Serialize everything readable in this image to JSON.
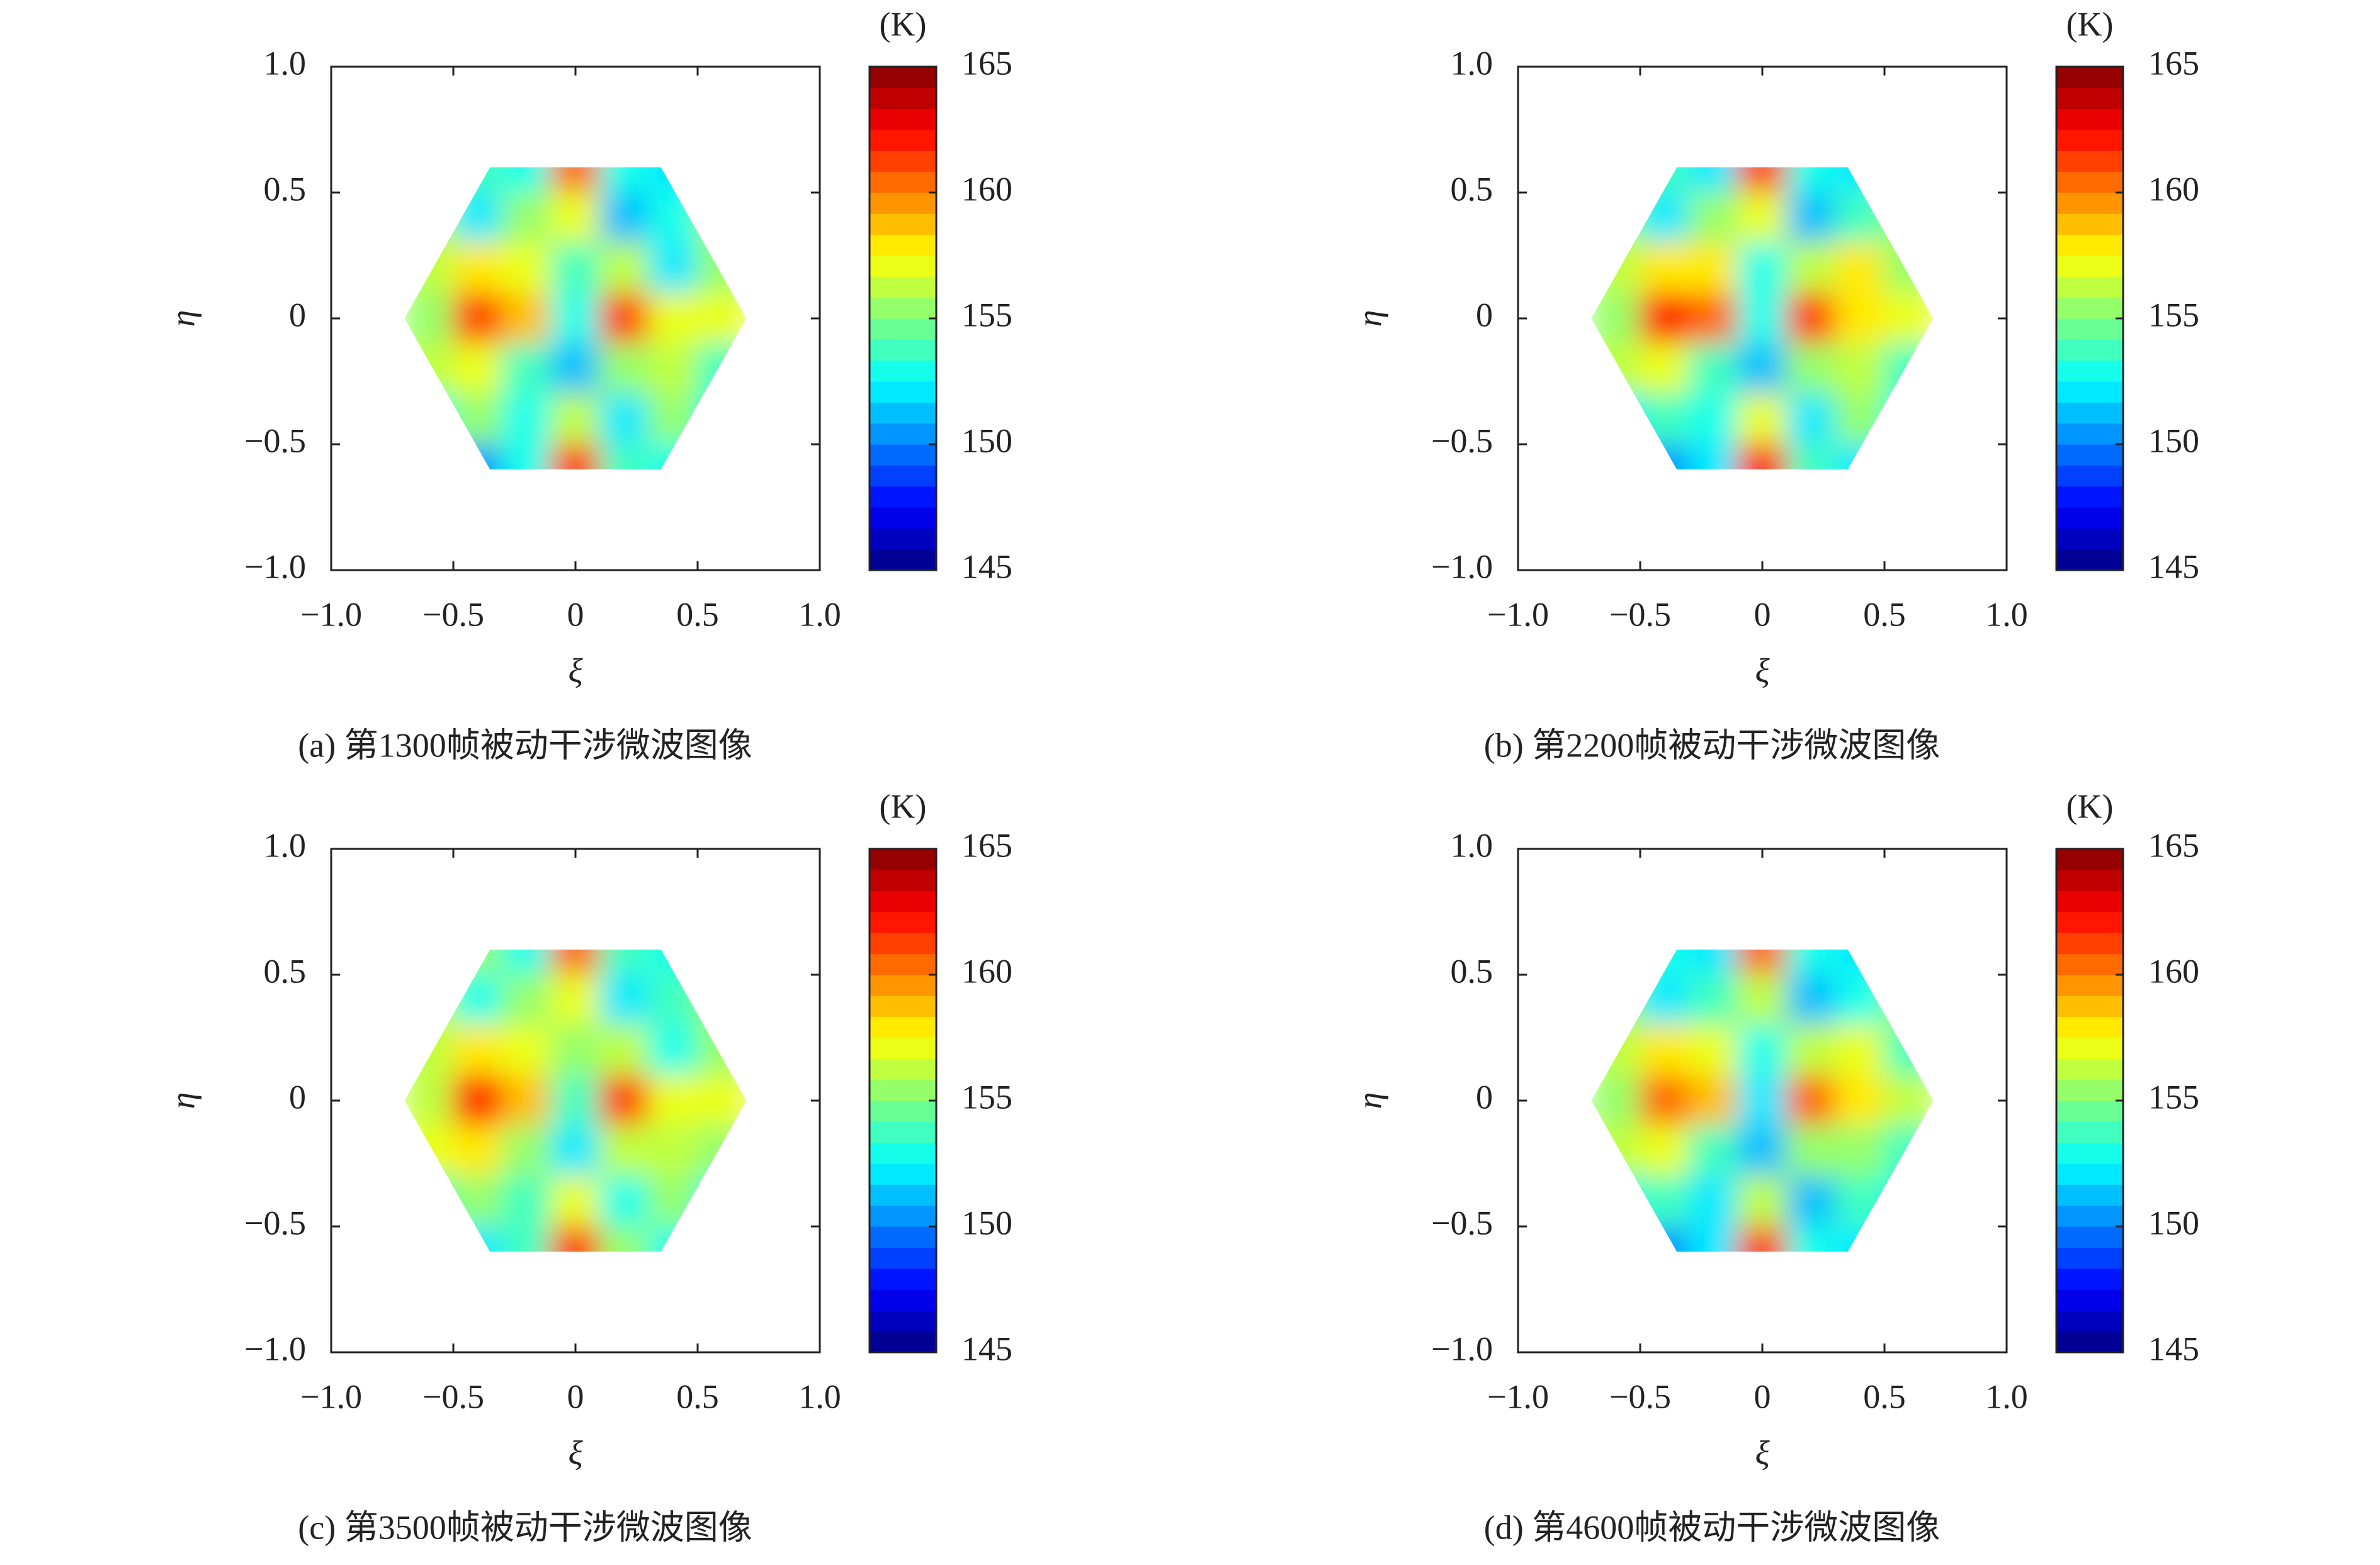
{
  "chart_data": [
    {
      "type": "heatmap",
      "caption": "(a) 第1300帧被动干涉微波图像",
      "x_label": "ξ",
      "y_label": "η",
      "colorbar_label": "(K)",
      "xlim": [
        -1,
        1
      ],
      "ylim": [
        -1,
        1
      ],
      "xticks": [
        {
          "value": -1,
          "label": "−1.0"
        },
        {
          "value": -0.5,
          "label": "−0.5"
        },
        0,
        0.5,
        {
          "value": 1,
          "label": "1.0"
        }
      ],
      "yticks": [
        {
          "value": -1,
          "label": "−1.0"
        },
        {
          "value": -0.5,
          "label": "−0.5"
        },
        0,
        0.5,
        {
          "value": 1,
          "label": "1.0"
        }
      ],
      "zlim": [
        145,
        165
      ],
      "zticks": [
        145,
        150,
        155,
        160,
        165
      ],
      "x": [
        -0.6,
        -0.4,
        -0.2,
        0,
        0.2,
        0.4,
        0.6
      ],
      "y": [
        0.6,
        0.4,
        0.2,
        0,
        -0.2,
        -0.4,
        -0.6
      ],
      "z": [
        [
          null,
          154,
          153,
          160,
          153,
          152,
          null
        ],
        [
          156,
          152,
          155,
          157,
          151,
          153,
          155
        ],
        [
          156,
          158,
          157,
          154,
          156,
          152,
          155
        ],
        [
          155,
          161,
          159,
          153,
          161,
          157,
          157
        ],
        [
          156,
          157,
          154,
          151,
          155,
          156,
          154
        ],
        [
          153,
          155,
          153,
          156,
          152,
          155,
          153
        ],
        [
          null,
          150,
          153,
          161,
          154,
          153,
          null
        ]
      ]
    },
    {
      "type": "heatmap",
      "caption": "(b) 第2200帧被动干涉微波图像",
      "x_label": "ξ",
      "y_label": "η",
      "colorbar_label": "(K)",
      "xlim": [
        -1,
        1
      ],
      "ylim": [
        -1,
        1
      ],
      "xticks": [
        {
          "value": -1,
          "label": "−1.0"
        },
        {
          "value": -0.5,
          "label": "−0.5"
        },
        0,
        0.5,
        {
          "value": 1,
          "label": "1.0"
        }
      ],
      "yticks": [
        {
          "value": -1,
          "label": "−1.0"
        },
        {
          "value": -0.5,
          "label": "−0.5"
        },
        0,
        0.5,
        {
          "value": 1,
          "label": "1.0"
        }
      ],
      "zlim": [
        145,
        165
      ],
      "zticks": [
        145,
        150,
        155,
        160,
        165
      ],
      "x": [
        -0.6,
        -0.4,
        -0.2,
        0,
        0.2,
        0.4,
        0.6
      ],
      "y": [
        0.6,
        0.4,
        0.2,
        0,
        -0.2,
        -0.4,
        -0.6
      ],
      "z": [
        [
          null,
          154,
          152,
          161,
          153,
          152,
          null
        ],
        [
          155,
          152,
          155,
          157,
          151,
          154,
          155
        ],
        [
          156,
          158,
          158,
          153,
          156,
          158,
          155
        ],
        [
          155,
          162,
          160,
          153,
          161,
          158,
          157
        ],
        [
          156,
          157,
          154,
          151,
          155,
          156,
          154
        ],
        [
          152,
          154,
          153,
          157,
          152,
          155,
          153
        ],
        [
          null,
          150,
          152,
          162,
          154,
          152,
          null
        ]
      ]
    },
    {
      "type": "heatmap",
      "caption": "(c) 第3500帧被动干涉微波图像",
      "x_label": "ξ",
      "y_label": "η",
      "colorbar_label": "(K)",
      "xlim": [
        -1,
        1
      ],
      "ylim": [
        -1,
        1
      ],
      "xticks": [
        {
          "value": -1,
          "label": "−1.0"
        },
        {
          "value": -0.5,
          "label": "−0.5"
        },
        0,
        0.5,
        {
          "value": 1,
          "label": "1.0"
        }
      ],
      "yticks": [
        {
          "value": -1,
          "label": "−1.0"
        },
        {
          "value": -0.5,
          "label": "−0.5"
        },
        0,
        0.5,
        {
          "value": 1,
          "label": "1.0"
        }
      ],
      "zlim": [
        145,
        165
      ],
      "zticks": [
        145,
        150,
        155,
        160,
        165
      ],
      "x": [
        -0.6,
        -0.4,
        -0.2,
        0,
        0.2,
        0.4,
        0.6
      ],
      "y": [
        0.6,
        0.4,
        0.2,
        0,
        -0.2,
        -0.4,
        -0.6
      ],
      "z": [
        [
          null,
          155,
          153,
          160,
          154,
          153,
          null
        ],
        [
          156,
          153,
          155,
          157,
          152,
          154,
          155
        ],
        [
          156,
          158,
          157,
          155,
          156,
          153,
          155
        ],
        [
          156,
          162,
          159,
          154,
          161,
          157,
          157
        ],
        [
          157,
          158,
          155,
          152,
          156,
          156,
          155
        ],
        [
          154,
          155,
          154,
          157,
          153,
          155,
          153
        ],
        [
          null,
          152,
          154,
          161,
          155,
          153,
          null
        ]
      ]
    },
    {
      "type": "heatmap",
      "caption": "(d) 第4600帧被动干涉微波图像",
      "x_label": "ξ",
      "y_label": "η",
      "colorbar_label": "(K)",
      "xlim": [
        -1,
        1
      ],
      "ylim": [
        -1,
        1
      ],
      "xticks": [
        {
          "value": -1,
          "label": "−1.0"
        },
        {
          "value": -0.5,
          "label": "−0.5"
        },
        0,
        0.5,
        {
          "value": 1,
          "label": "1.0"
        }
      ],
      "yticks": [
        {
          "value": -1,
          "label": "−1.0"
        },
        {
          "value": -0.5,
          "label": "−0.5"
        },
        0,
        0.5,
        {
          "value": 1,
          "label": "1.0"
        }
      ],
      "zlim": [
        145,
        165
      ],
      "zticks": [
        145,
        150,
        155,
        160,
        165
      ],
      "x": [
        -0.6,
        -0.4,
        -0.2,
        0,
        0.2,
        0.4,
        0.6
      ],
      "y": [
        0.6,
        0.4,
        0.2,
        0,
        -0.2,
        -0.4,
        -0.6
      ],
      "z": [
        [
          null,
          153,
          152,
          160,
          153,
          152,
          null
        ],
        [
          155,
          152,
          154,
          156,
          151,
          153,
          155
        ],
        [
          156,
          158,
          157,
          153,
          156,
          157,
          154
        ],
        [
          155,
          160,
          159,
          152,
          160,
          158,
          156
        ],
        [
          156,
          157,
          154,
          151,
          155,
          155,
          154
        ],
        [
          153,
          154,
          152,
          156,
          151,
          154,
          153
        ],
        [
          null,
          150,
          152,
          161,
          153,
          152,
          null
        ]
      ]
    }
  ]
}
